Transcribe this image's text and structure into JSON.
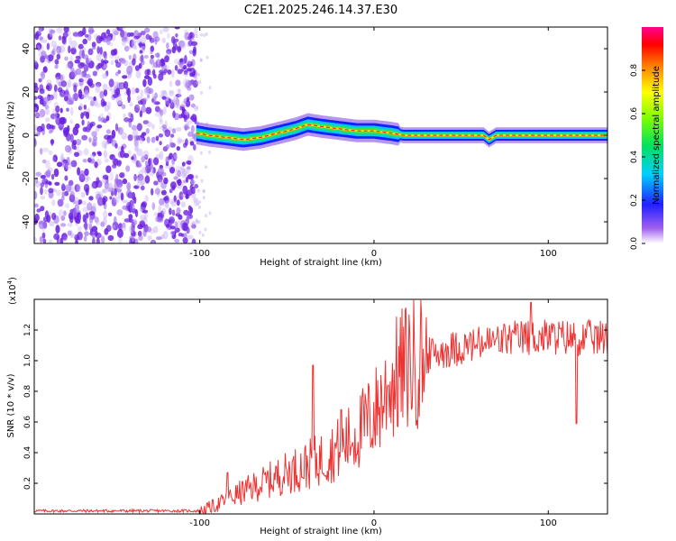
{
  "title": "C2E1.2025.246.14.37.E30",
  "colors": {
    "snr_line": "#ee3333",
    "axis": "#000000",
    "scatter": "#7a3ee0"
  },
  "chart_data": [
    {
      "type": "heatmap",
      "name": "spectrogram",
      "xlabel": "Height of straight line (km)",
      "ylabel": "Frequency (Hz)",
      "xlim": [
        -195,
        134
      ],
      "ylim": [
        -50,
        50
      ],
      "x_ticks": [
        -100,
        0,
        100
      ],
      "x_tick_labels": [
        "-100",
        "0",
        "100"
      ],
      "y_ticks": [
        -40,
        -20,
        0,
        20,
        40
      ],
      "y_tick_labels": [
        "-40",
        "-20",
        "0",
        "20",
        "40"
      ],
      "ridge_frequency": {
        "x": [
          -102,
          -95,
          -85,
          -75,
          -65,
          -55,
          -45,
          -38,
          -30,
          -20,
          -10,
          0,
          10,
          17,
          30,
          50,
          63,
          66,
          70,
          100,
          134
        ],
        "y": [
          1,
          0,
          -1,
          -2,
          -1,
          1,
          3,
          5,
          4,
          3,
          2,
          2,
          1,
          0,
          0,
          0,
          0,
          -2,
          0,
          0,
          0
        ]
      },
      "noise_region_x": [
        -195,
        -102
      ],
      "colorbar": {
        "label": "Normalized spectral amplitude",
        "range": [
          0,
          1
        ],
        "ticks": [
          0.0,
          0.2,
          0.4,
          0.6,
          0.8
        ],
        "tick_labels": [
          "0.0",
          "0.2",
          "0.4",
          "0.6",
          "0.8"
        ]
      }
    },
    {
      "type": "line",
      "name": "snr",
      "xlabel": "Height of straight line (km)",
      "ylabel": "SNR (10 * v/v)",
      "y_multiplier": "(x10",
      "y_multiplier_exp": "4",
      "y_multiplier_close": ")",
      "xlim": [
        -195,
        134
      ],
      "ylim": [
        0.0,
        1.4
      ],
      "x_ticks": [
        -100,
        0,
        100
      ],
      "x_tick_labels": [
        "-100",
        "0",
        "100"
      ],
      "y_ticks": [
        0.2,
        0.4,
        0.6,
        0.8,
        1.0,
        1.2
      ],
      "y_tick_labels": [
        "0.2",
        "0.4",
        "0.6",
        "0.8",
        "1.0",
        "1.2"
      ],
      "trend": {
        "x": [
          -195,
          -100,
          -90,
          -80,
          -70,
          -60,
          -50,
          -40,
          -30,
          -20,
          -10,
          0,
          5,
          10,
          20,
          30,
          40,
          60,
          80,
          100,
          120,
          134
        ],
        "y": [
          0.02,
          0.02,
          0.06,
          0.12,
          0.17,
          0.22,
          0.27,
          0.31,
          0.36,
          0.43,
          0.52,
          0.65,
          0.75,
          0.85,
          0.98,
          1.05,
          1.09,
          1.13,
          1.17,
          1.18,
          1.17,
          1.17
        ]
      },
      "spikes": [
        {
          "x": -84,
          "y": 0.27
        },
        {
          "x": -35,
          "y": 0.97
        },
        {
          "x": -19,
          "y": 0.68
        },
        {
          "x": 8,
          "y": 0.84
        },
        {
          "x": 116,
          "y": 0.59
        },
        {
          "x": 90,
          "y": 1.38
        }
      ]
    }
  ]
}
